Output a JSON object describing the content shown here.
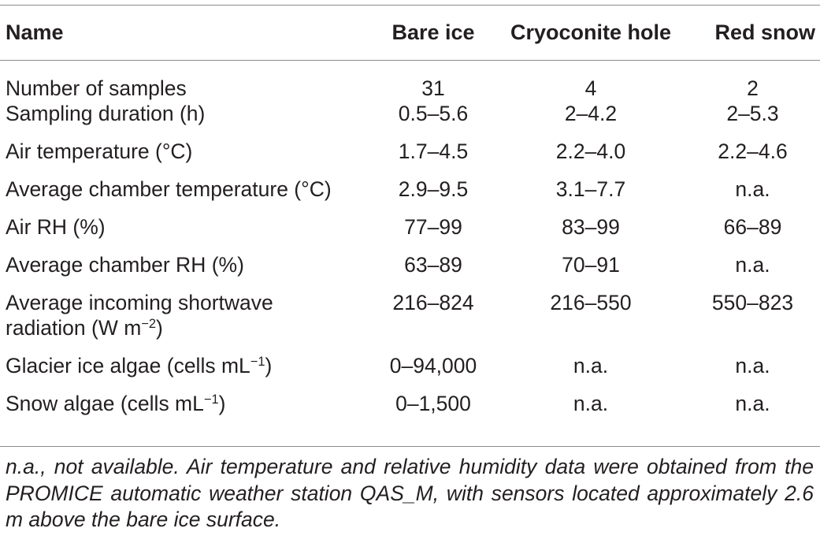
{
  "table": {
    "headers": [
      "Name",
      "Bare ice",
      "Cryoconite hole",
      "Red snow"
    ],
    "rows": [
      {
        "label": "Number of samples",
        "bare_ice": "31",
        "cryoconite_hole": "4",
        "red_snow": "2"
      },
      {
        "label": "Sampling duration (h)",
        "bare_ice": "0.5–5.6",
        "cryoconite_hole": "2–4.2",
        "red_snow": "2–5.3"
      },
      {
        "label": "Air temperature (°C)",
        "bare_ice": "1.7–4.5",
        "cryoconite_hole": "2.2–4.0",
        "red_snow": "2.2–4.6"
      },
      {
        "label": "Average chamber temperature (°C)",
        "bare_ice": "2.9–9.5",
        "cryoconite_hole": "3.1–7.7",
        "red_snow": "n.a."
      },
      {
        "label": "Air RH (%)",
        "bare_ice": "77–99",
        "cryoconite_hole": "83–99",
        "red_snow": "66–89"
      },
      {
        "label": "Average chamber RH (%)",
        "bare_ice": "63–89",
        "cryoconite_hole": "70–91",
        "red_snow": "n.a."
      },
      {
        "label_line1": "Average incoming shortwave",
        "label_line2": "radiation (W m",
        "label_sup": "−2",
        "label_end": ")",
        "bare_ice": "216–824",
        "cryoconite_hole": "216–550",
        "red_snow": "550–823"
      },
      {
        "label": "Glacier ice algae (cells mL",
        "label_sup": "−1",
        "label_end": ")",
        "bare_ice": "0–94,000",
        "cryoconite_hole": "n.a.",
        "red_snow": "n.a."
      },
      {
        "label": "Snow algae (cells mL",
        "label_sup": "−1",
        "label_end": ")",
        "bare_ice": "0–1,500",
        "cryoconite_hole": "n.a.",
        "red_snow": "n.a."
      }
    ]
  },
  "footnote": "n.a., not available. Air temperature and relative humidity data were obtained from the PROMICE automatic weather station QAS_M, with sensors located approximately 2.6 m above the bare ice surface."
}
